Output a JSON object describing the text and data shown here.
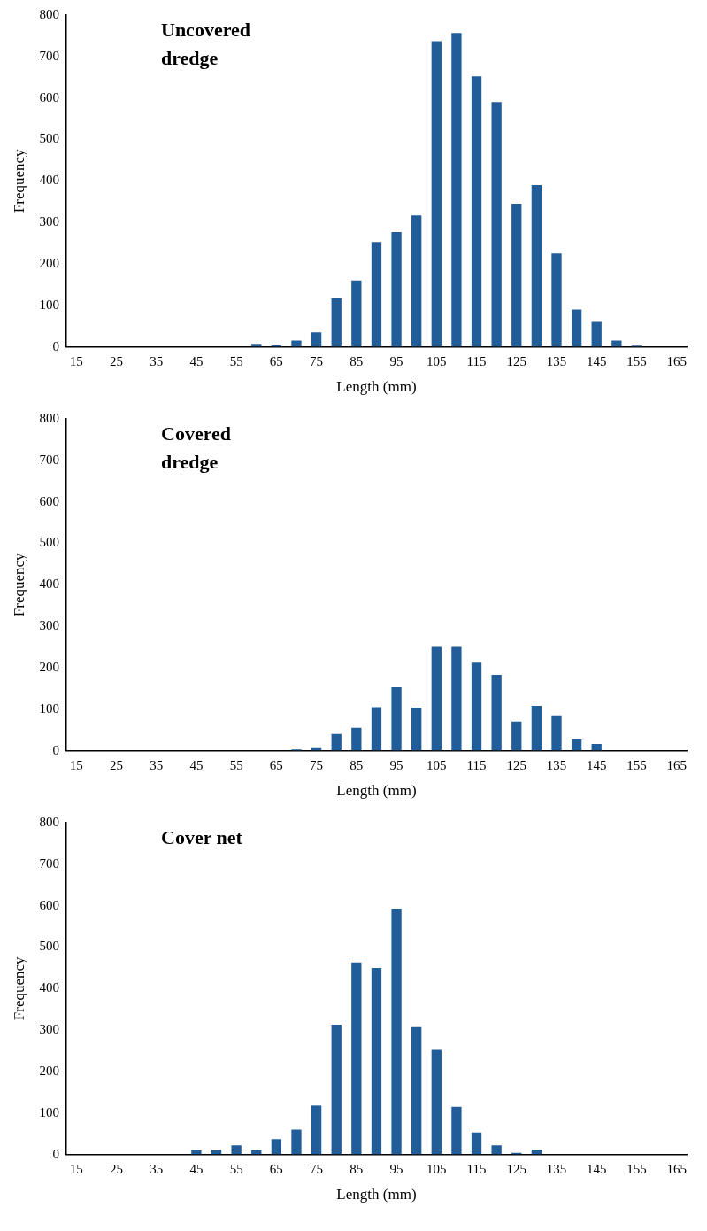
{
  "chart_data": [
    {
      "type": "bar",
      "title": "Uncovered dredge",
      "xlabel": "Length (mm)",
      "ylabel": "Frequency",
      "categories": [
        "15",
        null,
        "25",
        null,
        "35",
        null,
        "45",
        null,
        "55",
        null,
        "65",
        null,
        "75",
        null,
        "85",
        null,
        "95",
        null,
        "105",
        null,
        "115",
        null,
        "125",
        null,
        "135",
        null,
        "145",
        null,
        "155",
        null,
        "165"
      ],
      "series": [
        {
          "color": "#215e99",
          "values": [
            0,
            0,
            0,
            0,
            0,
            0,
            0,
            0,
            0,
            7,
            4,
            15,
            35,
            117,
            160,
            253,
            277,
            317,
            737,
            757,
            652,
            590,
            345,
            390,
            225,
            90,
            60,
            15,
            3,
            0,
            0
          ]
        }
      ],
      "ylim": [
        0,
        800
      ],
      "yticks": [
        0,
        100,
        200,
        300,
        400,
        500,
        600,
        700,
        800
      ],
      "grid": false,
      "legend": false
    },
    {
      "type": "bar",
      "title": "Covered dredge",
      "xlabel": "Length (mm)",
      "ylabel": "Frequency",
      "categories": [
        "15",
        null,
        "25",
        null,
        "35",
        null,
        "45",
        null,
        "55",
        null,
        "65",
        null,
        "75",
        null,
        "85",
        null,
        "95",
        null,
        "105",
        null,
        "115",
        null,
        "125",
        null,
        "135",
        null,
        "145",
        null,
        "155",
        null,
        "165"
      ],
      "series": [
        {
          "color": "#215e99",
          "values": [
            0,
            0,
            0,
            0,
            0,
            0,
            0,
            0,
            0,
            0,
            0,
            3,
            6,
            40,
            55,
            105,
            153,
            103,
            250,
            250,
            212,
            183,
            70,
            108,
            85,
            27,
            16,
            0,
            0,
            0,
            0
          ]
        }
      ],
      "ylim": [
        0,
        800
      ],
      "yticks": [
        0,
        100,
        200,
        300,
        400,
        500,
        600,
        700,
        800
      ],
      "grid": false,
      "legend": false
    },
    {
      "type": "bar",
      "title": "Cover net",
      "xlabel": "Length (mm)",
      "ylabel": "Frequency",
      "categories": [
        "15",
        null,
        "25",
        null,
        "35",
        null,
        "45",
        null,
        "55",
        null,
        "65",
        null,
        "75",
        null,
        "85",
        null,
        "95",
        null,
        "105",
        null,
        "115",
        null,
        "125",
        null,
        "135",
        null,
        "145",
        null,
        "155",
        null,
        "165"
      ],
      "series": [
        {
          "color": "#215e99",
          "values": [
            0,
            0,
            0,
            0,
            0,
            0,
            10,
            12,
            22,
            10,
            37,
            60,
            118,
            313,
            463,
            450,
            593,
            307,
            252,
            115,
            53,
            22,
            4,
            12,
            0,
            0,
            0,
            0,
            0,
            0,
            0
          ]
        }
      ],
      "ylim": [
        0,
        800
      ],
      "yticks": [
        0,
        100,
        200,
        300,
        400,
        500,
        600,
        700,
        800
      ],
      "grid": false,
      "legend": false
    }
  ]
}
